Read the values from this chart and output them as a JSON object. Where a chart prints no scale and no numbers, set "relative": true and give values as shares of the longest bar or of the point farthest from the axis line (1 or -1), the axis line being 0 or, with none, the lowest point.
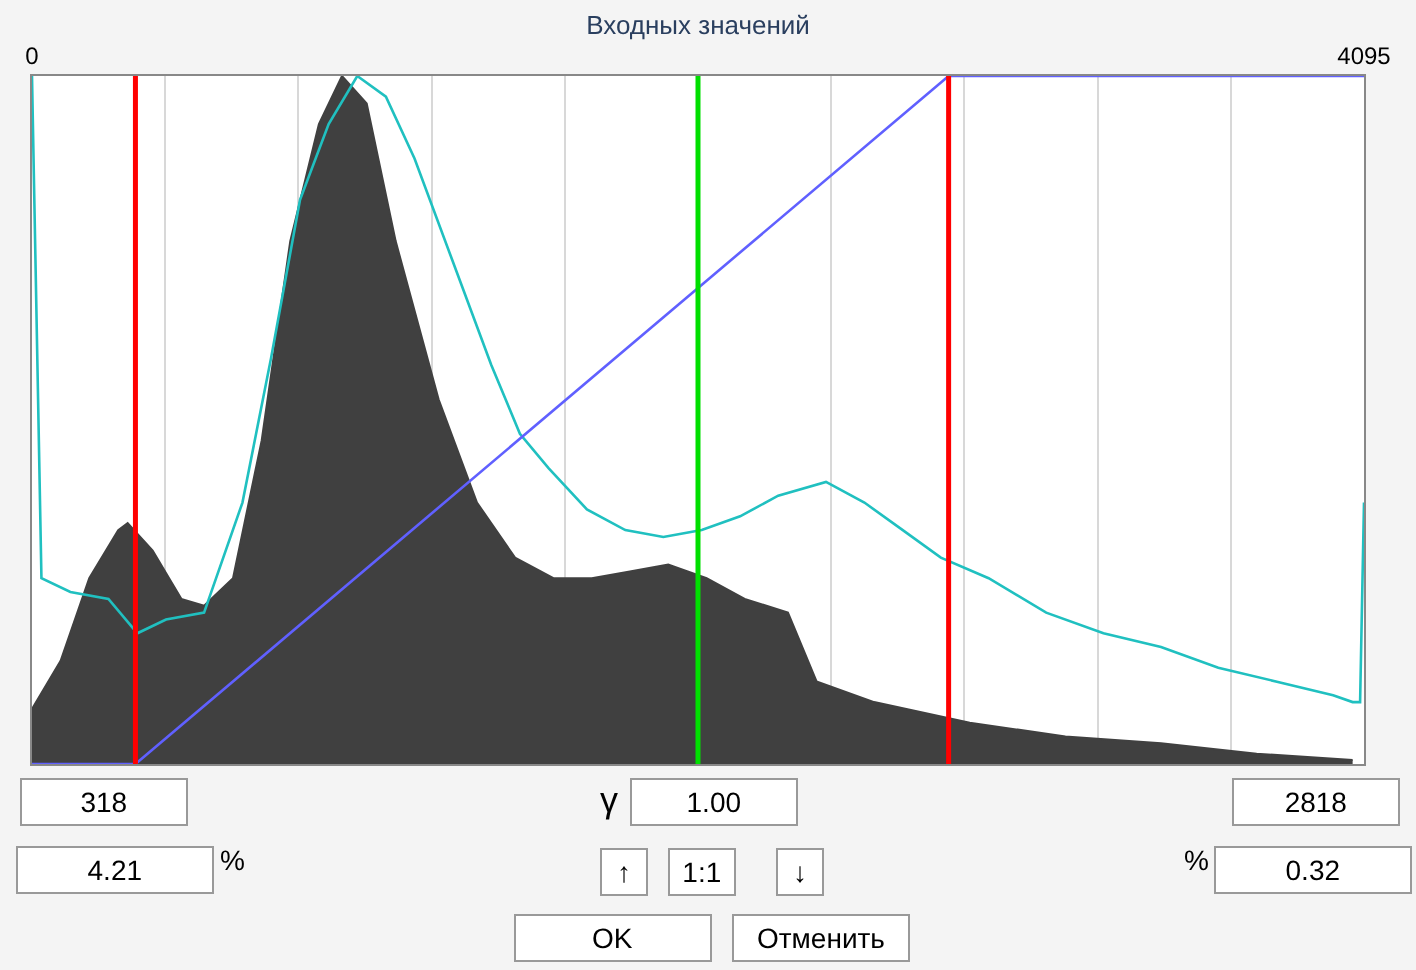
{
  "chart_data": {
    "type": "area",
    "relative": true,
    "xlabel": "Входных значений",
    "xlim": [
      0,
      4095
    ],
    "xticks": [
      0,
      {
        "value": 409.5,
        "label": null
      },
      {
        "value": 819,
        "label": null
      },
      {
        "value": 1228.5,
        "label": null
      },
      {
        "value": 1638,
        "label": null
      },
      {
        "value": 2047.5,
        "label": null
      },
      {
        "value": 2457,
        "label": null
      },
      {
        "value": 2866.5,
        "label": null
      },
      {
        "value": 3276,
        "label": null
      },
      {
        "value": 3685.5,
        "label": null
      },
      4095
    ],
    "grid": "x",
    "series": [
      {
        "color": "#404040",
        "x": [
          0,
          88,
          176,
          265,
          294,
          371,
          459,
          529,
          618,
          706,
          794,
          882,
          953,
          1029,
          1118,
          1250,
          1368,
          1485,
          1603,
          1721,
          1838,
          1956,
          2074,
          2191,
          2324,
          2324,
          2412,
          2589,
          2883,
          3177,
          3471,
          3765,
          4060
        ],
        "values": [
          0.08,
          0.15,
          0.27,
          0.34,
          0.35,
          0.31,
          0.24,
          0.23,
          0.27,
          0.47,
          0.76,
          0.93,
          1.0,
          0.96,
          0.76,
          0.53,
          0.38,
          0.3,
          0.27,
          0.27,
          0.28,
          0.29,
          0.27,
          0.24,
          0.22,
          0.22,
          0.12,
          0.09,
          0.06,
          0.04,
          0.03,
          0.015,
          0.006
        ]
      },
      {
        "type": "line",
        "color": "#20c0c0",
        "x": [
          0,
          29,
          118,
          235,
          324,
          412,
          529,
          647,
          735,
          824,
          912,
          1000,
          1088,
          1176,
          1294,
          1412,
          1500,
          1588,
          1706,
          1824,
          1941,
          2059,
          2177,
          2294,
          2441,
          2559,
          2677,
          2794,
          2941,
          3118,
          3294,
          3471,
          3647,
          3824,
          4000,
          4060,
          4083,
          4095
        ],
        "values": [
          1.0,
          0.27,
          0.25,
          0.24,
          0.19,
          0.21,
          0.22,
          0.38,
          0.59,
          0.82,
          0.93,
          1.0,
          0.97,
          0.88,
          0.73,
          0.58,
          0.48,
          0.43,
          0.37,
          0.34,
          0.33,
          0.34,
          0.36,
          0.39,
          0.41,
          0.38,
          0.34,
          0.3,
          0.27,
          0.22,
          0.19,
          0.17,
          0.14,
          0.12,
          0.1,
          0.09,
          0.09,
          0.38
        ]
      },
      {
        "type": "line",
        "color": "#6060ff",
        "x": [
          0,
          318,
          2818,
          4095
        ],
        "values": [
          0,
          0,
          1,
          1
        ]
      }
    ],
    "ref_lines": [
      {
        "axis": "x",
        "value": 318,
        "color": "#ff0000"
      },
      {
        "axis": "x",
        "value": 2047.5,
        "color": "#00e000"
      },
      {
        "axis": "x",
        "value": 2818,
        "color": "#ff0000"
      }
    ],
    "annotations": [
      "318",
      "γ",
      "1.00",
      "2818",
      "4.21",
      "%",
      "↑",
      "1:1",
      "↓",
      "%",
      "0.32",
      "OK",
      "Отменить"
    ]
  }
}
